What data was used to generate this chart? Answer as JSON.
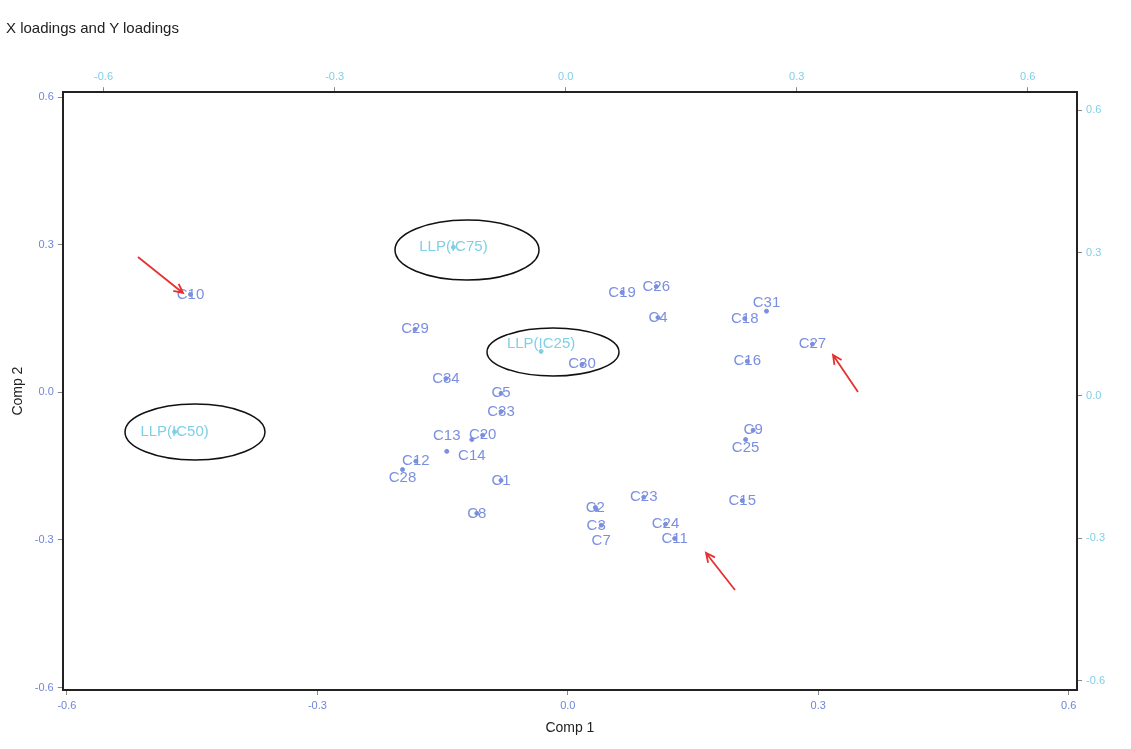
{
  "chart_data": {
    "type": "scatter",
    "title": "X loadings and Y loadings",
    "xlabel": "Comp 1",
    "ylabel": "Comp 2",
    "xlim": [
      -0.605,
      0.61
    ],
    "ylim": [
      -0.605,
      0.61
    ],
    "x2lim": [
      -0.653,
      0.664
    ],
    "y2lim": [
      -0.619,
      0.638
    ],
    "xticks": [
      -0.6,
      -0.3,
      {
        "value": 0,
        "label": "0.0"
      },
      0.3,
      0.6
    ],
    "yticks": [
      -0.6,
      -0.3,
      {
        "value": 0,
        "label": "0.0"
      },
      0.3,
      0.6
    ],
    "x2ticks": [
      -0.6,
      -0.3,
      {
        "value": 0,
        "label": "0.0"
      },
      0.3,
      0.6
    ],
    "y2ticks": [
      -0.6,
      -0.3,
      {
        "value": 0,
        "label": "0.0"
      },
      0.3,
      0.6
    ],
    "marker": "circle",
    "grid": false,
    "legend": false,
    "series": [
      {
        "color": "#7b8fe0",
        "x": [
          -0.452,
          -0.183,
          -0.146,
          -0.08,
          -0.08,
          -0.102,
          -0.115,
          -0.145,
          -0.182,
          -0.198,
          -0.08,
          -0.109,
          0.017,
          0.065,
          0.106,
          0.108,
          0.212,
          0.238,
          0.293,
          0.215,
          0.222,
          0.213,
          0.209,
          0.091,
          0.033,
          0.034,
          0.04,
          0.117,
          0.128
        ],
        "values": [
          0.199,
          0.128,
          0.028,
          -0.002,
          -0.039,
          -0.087,
          -0.096,
          -0.12,
          -0.14,
          -0.157,
          -0.179,
          -0.246,
          0.057,
          0.203,
          0.215,
          0.152,
          0.15,
          0.165,
          0.098,
          0.063,
          -0.077,
          -0.096,
          -0.22,
          -0.213,
          -0.234,
          -0.238,
          -0.27,
          -0.268,
          -0.297
        ],
        "value_labels": [
          "C10",
          "C29",
          "C34",
          "C5",
          "C33",
          "C20",
          "C14",
          "C13",
          "C12",
          "C28",
          "C1",
          "C8",
          "C30",
          "C19",
          "C26",
          "C4",
          "C18",
          "C31",
          "C27",
          "C16",
          "C9",
          "C25",
          "C15",
          "C23",
          "C2",
          "C3",
          "C7",
          "C24",
          "C11"
        ]
      },
      {
        "color": "#7fcfe6",
        "axis": "y2",
        "x": [
          -0.137,
          -0.032,
          -0.471
        ],
        "values": [
          0.312,
          0.093,
          -0.076
        ],
        "value_labels": [
          "LLP(IC75)",
          "LLP(IC25)",
          "LLP(IC50)"
        ]
      }
    ]
  }
}
